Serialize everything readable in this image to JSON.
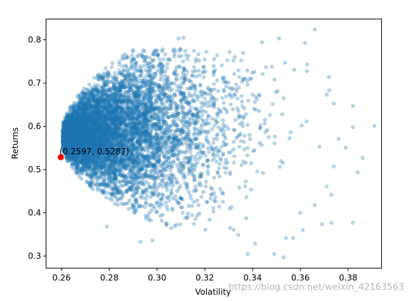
{
  "chart_data": {
    "type": "scatter",
    "xlabel": "Volatility",
    "ylabel": "Returns",
    "xlim": [
      0.2535,
      0.394
    ],
    "ylim": [
      0.272,
      0.848
    ],
    "xticks": [
      0.26,
      0.28,
      0.3,
      0.32,
      0.34,
      0.36,
      0.38
    ],
    "xtick_labels": [
      "0.26",
      "0.28",
      "0.30",
      "0.32",
      "0.34",
      "0.36",
      "0.38"
    ],
    "yticks": [
      0.3,
      0.4,
      0.5,
      0.6,
      0.7,
      0.8
    ],
    "ytick_labels": [
      "0.3",
      "0.4",
      "0.5",
      "0.6",
      "0.7",
      "0.8"
    ],
    "grid": false,
    "point_color": "#1f77b4",
    "point_alpha": 0.3,
    "highlight": {
      "x": 0.2597,
      "y": 0.5287,
      "color": "#ff0000",
      "label": "(0.2597, 0.5287)"
    },
    "outlier_points": [
      [
        0.366,
        0.824
      ],
      [
        0.362,
        0.793
      ],
      [
        0.344,
        0.794
      ],
      [
        0.351,
        0.803
      ],
      [
        0.311,
        0.805
      ],
      [
        0.309,
        0.803
      ],
      [
        0.307,
        0.778
      ],
      [
        0.391,
        0.601
      ],
      [
        0.386,
        0.527
      ],
      [
        0.382,
        0.598
      ],
      [
        0.384,
        0.494
      ],
      [
        0.382,
        0.377
      ],
      [
        0.382,
        0.647
      ],
      [
        0.372,
        0.714
      ],
      [
        0.371,
        0.673
      ],
      [
        0.374,
        0.507
      ],
      [
        0.371,
        0.461
      ],
      [
        0.373,
        0.442
      ],
      [
        0.373,
        0.377
      ],
      [
        0.366,
        0.418
      ],
      [
        0.353,
        0.297
      ],
      [
        0.349,
        0.305
      ],
      [
        0.341,
        0.329
      ],
      [
        0.338,
        0.305
      ],
      [
        0.357,
        0.342
      ],
      [
        0.361,
        0.36
      ],
      [
        0.369,
        0.374
      ],
      [
        0.36,
        0.4
      ],
      [
        0.354,
        0.342
      ],
      [
        0.322,
        0.384
      ],
      [
        0.334,
        0.349
      ],
      [
        0.332,
        0.361
      ],
      [
        0.293,
        0.333
      ],
      [
        0.298,
        0.336
      ],
      [
        0.279,
        0.368
      ],
      [
        0.374,
        0.653
      ],
      [
        0.376,
        0.571
      ],
      [
        0.379,
        0.551
      ],
      [
        0.368,
        0.553
      ],
      [
        0.372,
        0.683
      ]
    ],
    "cluster": {
      "note": "dense cloud of simulated portfolios",
      "count": 7000
    }
  },
  "watermark": "https://blog.csdn.net/weixin_42163563"
}
